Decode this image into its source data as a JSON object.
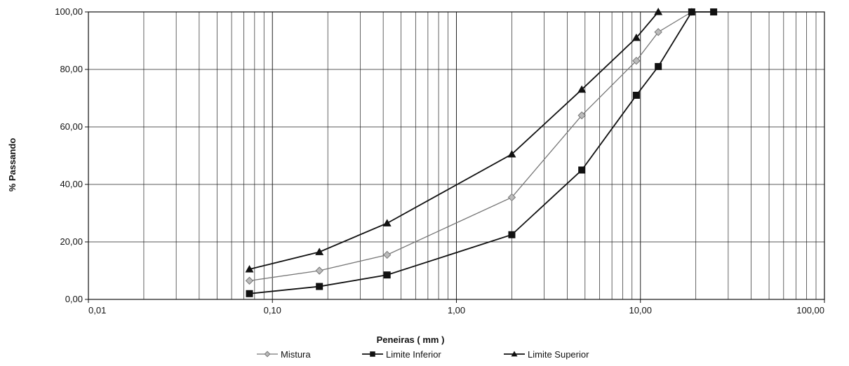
{
  "chart_data": {
    "type": "line",
    "title": "",
    "xlabel": "Peneiras ( mm )",
    "ylabel": "% Passando",
    "x_scale": "log",
    "xlim": [
      0.01,
      100
    ],
    "ylim": [
      0,
      100
    ],
    "x_ticks": [
      0.01,
      0.1,
      1,
      10,
      100
    ],
    "x_tick_labels": [
      "0,01",
      "0,10",
      "1,00",
      "10,00",
      "100,00"
    ],
    "y_ticks": [
      0,
      20,
      40,
      60,
      80,
      100
    ],
    "y_tick_labels": [
      "0,00",
      "20,00",
      "40,00",
      "60,00",
      "80,00",
      "100,00"
    ],
    "grid": true,
    "legend_position": "bottom",
    "series": [
      {
        "name": "Mistura",
        "marker": "diamond",
        "color": "#777777",
        "x": [
          0.075,
          0.18,
          0.42,
          2.0,
          4.8,
          9.5,
          12.5,
          19.0
        ],
        "y": [
          6.5,
          10.0,
          15.5,
          35.5,
          64.0,
          83.0,
          93.0,
          100.0
        ]
      },
      {
        "name": "Limite Inferior",
        "marker": "square",
        "color": "#111111",
        "x": [
          0.075,
          0.18,
          0.42,
          2.0,
          4.8,
          9.5,
          12.5,
          19.0,
          25.0
        ],
        "y": [
          2.0,
          4.5,
          8.5,
          22.5,
          45.0,
          71.0,
          81.0,
          100.0,
          100.0
        ]
      },
      {
        "name": "Limite Superior",
        "marker": "triangle",
        "color": "#111111",
        "x": [
          0.075,
          0.18,
          0.42,
          2.0,
          4.8,
          9.5,
          12.5
        ],
        "y": [
          10.5,
          16.5,
          26.5,
          50.5,
          73.0,
          91.0,
          100.0
        ]
      }
    ]
  }
}
